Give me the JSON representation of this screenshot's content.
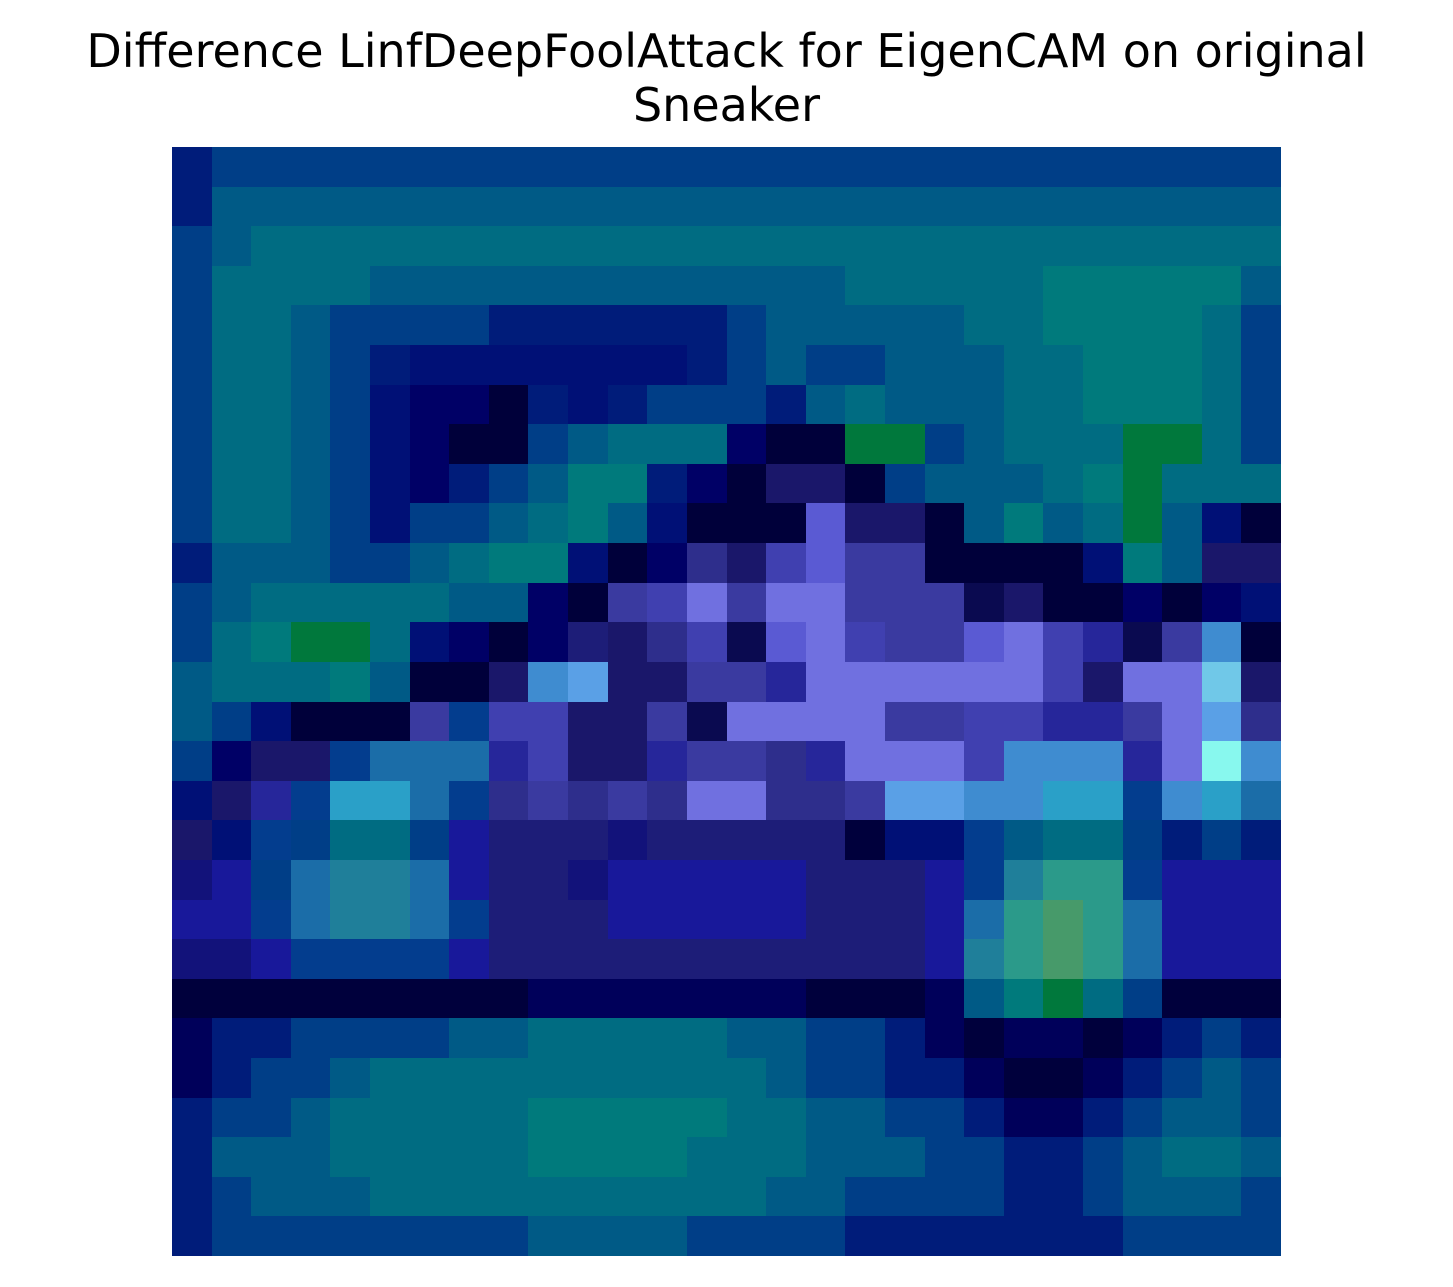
{
  "figure": {
    "title_line1": "Difference LinfDeepFoolAttack for EigenCAM on original",
    "title_line2": "Sneaker"
  },
  "chart_data": {
    "type": "heatmap",
    "title": "Difference LinfDeepFoolAttack for EigenCAM on original Sneaker",
    "xlabel": "",
    "ylabel": "",
    "axes_visible": false,
    "grid": false,
    "legend": "none",
    "rows": 28,
    "cols": 28,
    "colors": {
      "0": "#001c7a",
      "1": "#003e87",
      "2": "#005a86",
      "3": "#006c82",
      "4": "#007a7c",
      "5": "#033d8e",
      "6": "#001076",
      "7": "#000066",
      "8": "#00003a",
      "9": "#1a176a",
      "10": "#5a5ad3",
      "11": "#4040b0",
      "12": "#7070e0",
      "13": "#3a3aa0",
      "14": "#2e2e8c",
      "15": "#1d1d78",
      "16": "#26269a",
      "17": "#3f8cd0",
      "18": "#5aa0e6",
      "19": "#2aa0c8",
      "20": "#70c8e8",
      "21": "#88f8ee",
      "22": "#1b6da8",
      "23": "#18189a",
      "24": "#12127a",
      "25": "#1f7f9a",
      "26": "#2b9a8a",
      "27": "#479a6a",
      "28": "#00003c",
      "29": "#00005a",
      "30": "#00783c",
      "31": "#0a0a50"
    },
    "values": [
      [
        0,
        1,
        1,
        1,
        1,
        1,
        1,
        1,
        1,
        1,
        1,
        1,
        1,
        1,
        1,
        1,
        1,
        1,
        1,
        1,
        1,
        1,
        1,
        1,
        1,
        1,
        1,
        1
      ],
      [
        0,
        2,
        2,
        2,
        2,
        2,
        2,
        2,
        2,
        2,
        2,
        2,
        2,
        2,
        2,
        2,
        2,
        2,
        2,
        2,
        2,
        2,
        2,
        2,
        2,
        2,
        2,
        2
      ],
      [
        1,
        2,
        3,
        3,
        3,
        3,
        3,
        3,
        3,
        3,
        3,
        3,
        3,
        3,
        3,
        3,
        3,
        3,
        3,
        3,
        3,
        3,
        3,
        3,
        3,
        3,
        3,
        3
      ],
      [
        1,
        3,
        3,
        3,
        3,
        2,
        2,
        2,
        2,
        2,
        2,
        2,
        2,
        2,
        2,
        2,
        2,
        3,
        3,
        3,
        3,
        3,
        4,
        4,
        4,
        4,
        4,
        2
      ],
      [
        1,
        3,
        3,
        2,
        1,
        1,
        1,
        1,
        0,
        0,
        0,
        0,
        0,
        0,
        1,
        2,
        2,
        2,
        2,
        2,
        3,
        3,
        4,
        4,
        4,
        4,
        3,
        1
      ],
      [
        1,
        3,
        3,
        2,
        1,
        0,
        6,
        6,
        6,
        6,
        6,
        6,
        6,
        0,
        1,
        2,
        1,
        1,
        2,
        2,
        2,
        3,
        3,
        4,
        4,
        4,
        3,
        1
      ],
      [
        1,
        3,
        3,
        2,
        1,
        6,
        7,
        7,
        8,
        0,
        6,
        0,
        1,
        1,
        1,
        0,
        2,
        3,
        2,
        2,
        2,
        3,
        3,
        4,
        4,
        4,
        3,
        1
      ],
      [
        1,
        3,
        3,
        2,
        1,
        6,
        7,
        8,
        8,
        1,
        2,
        3,
        3,
        3,
        7,
        8,
        8,
        30,
        30,
        1,
        2,
        3,
        3,
        3,
        30,
        30,
        3,
        1
      ],
      [
        1,
        3,
        3,
        2,
        1,
        6,
        7,
        0,
        1,
        2,
        4,
        4,
        0,
        7,
        8,
        9,
        9,
        8,
        1,
        2,
        2,
        2,
        3,
        4,
        30,
        3,
        3,
        3
      ],
      [
        1,
        3,
        3,
        2,
        1,
        6,
        1,
        1,
        2,
        3,
        4,
        2,
        6,
        8,
        8,
        8,
        10,
        9,
        9,
        8,
        2,
        4,
        2,
        3,
        30,
        2,
        6,
        8
      ],
      [
        0,
        2,
        2,
        2,
        1,
        1,
        2,
        3,
        4,
        4,
        6,
        8,
        7,
        14,
        9,
        11,
        10,
        13,
        13,
        8,
        8,
        8,
        8,
        6,
        4,
        2,
        9,
        9
      ],
      [
        1,
        2,
        3,
        3,
        3,
        3,
        3,
        2,
        2,
        7,
        8,
        13,
        11,
        12,
        13,
        12,
        12,
        13,
        13,
        13,
        31,
        9,
        8,
        8,
        7,
        8,
        7,
        6
      ],
      [
        1,
        3,
        4,
        30,
        30,
        3,
        6,
        7,
        8,
        7,
        15,
        9,
        14,
        11,
        31,
        10,
        12,
        11,
        13,
        13,
        10,
        12,
        11,
        16,
        31,
        13,
        17,
        8
      ],
      [
        2,
        3,
        3,
        3,
        4,
        2,
        8,
        8,
        9,
        17,
        18,
        9,
        9,
        13,
        13,
        16,
        12,
        12,
        12,
        12,
        12,
        12,
        11,
        9,
        12,
        12,
        20,
        9
      ],
      [
        2,
        1,
        6,
        8,
        8,
        8,
        13,
        5,
        11,
        11,
        9,
        9,
        13,
        31,
        12,
        12,
        12,
        12,
        13,
        13,
        11,
        11,
        16,
        16,
        13,
        12,
        18,
        14
      ],
      [
        1,
        7,
        9,
        9,
        5,
        22,
        22,
        22,
        16,
        11,
        9,
        9,
        16,
        13,
        13,
        14,
        16,
        12,
        12,
        12,
        11,
        17,
        17,
        17,
        16,
        12,
        21,
        17
      ],
      [
        6,
        9,
        16,
        5,
        19,
        19,
        22,
        5,
        14,
        13,
        14,
        13,
        14,
        12,
        12,
        14,
        14,
        13,
        18,
        18,
        17,
        17,
        19,
        19,
        5,
        17,
        19,
        22
      ],
      [
        9,
        6,
        5,
        1,
        3,
        3,
        1,
        23,
        15,
        15,
        15,
        24,
        15,
        15,
        15,
        15,
        15,
        28,
        6,
        6,
        5,
        2,
        3,
        3,
        1,
        0,
        1,
        0
      ],
      [
        24,
        23,
        1,
        22,
        25,
        25,
        22,
        23,
        15,
        15,
        24,
        23,
        23,
        23,
        23,
        23,
        15,
        15,
        15,
        23,
        5,
        25,
        26,
        26,
        5,
        23,
        23,
        23
      ],
      [
        23,
        23,
        5,
        22,
        25,
        25,
        22,
        5,
        15,
        15,
        15,
        23,
        23,
        23,
        23,
        23,
        15,
        15,
        15,
        23,
        22,
        26,
        27,
        26,
        22,
        23,
        23,
        23
      ],
      [
        24,
        24,
        23,
        5,
        5,
        5,
        5,
        23,
        15,
        15,
        15,
        15,
        15,
        15,
        15,
        15,
        15,
        15,
        15,
        23,
        25,
        26,
        27,
        26,
        22,
        23,
        23,
        23
      ],
      [
        28,
        28,
        28,
        28,
        28,
        28,
        28,
        28,
        28,
        29,
        29,
        29,
        29,
        29,
        29,
        29,
        28,
        28,
        28,
        29,
        2,
        4,
        30,
        3,
        1,
        28,
        28,
        28
      ],
      [
        29,
        0,
        0,
        1,
        1,
        1,
        1,
        2,
        2,
        3,
        3,
        3,
        3,
        3,
        2,
        2,
        1,
        1,
        0,
        29,
        28,
        29,
        29,
        28,
        29,
        0,
        1,
        0
      ],
      [
        29,
        0,
        1,
        1,
        2,
        3,
        3,
        3,
        3,
        3,
        3,
        3,
        3,
        3,
        3,
        2,
        1,
        1,
        0,
        0,
        29,
        28,
        28,
        29,
        0,
        1,
        2,
        1
      ],
      [
        0,
        1,
        1,
        2,
        3,
        3,
        3,
        3,
        3,
        4,
        4,
        4,
        4,
        4,
        3,
        3,
        2,
        2,
        1,
        1,
        0,
        29,
        29,
        0,
        1,
        2,
        2,
        1
      ],
      [
        0,
        2,
        2,
        2,
        3,
        3,
        3,
        3,
        3,
        4,
        4,
        4,
        4,
        3,
        3,
        3,
        2,
        2,
        2,
        1,
        1,
        0,
        0,
        1,
        2,
        3,
        3,
        2
      ],
      [
        0,
        1,
        2,
        2,
        2,
        3,
        3,
        3,
        3,
        3,
        3,
        3,
        3,
        3,
        3,
        2,
        2,
        1,
        1,
        1,
        1,
        0,
        0,
        1,
        2,
        2,
        2,
        1
      ],
      [
        0,
        1,
        1,
        1,
        1,
        1,
        1,
        1,
        1,
        2,
        2,
        2,
        2,
        1,
        1,
        1,
        1,
        0,
        0,
        0,
        0,
        0,
        0,
        0,
        1,
        1,
        1,
        1
      ]
    ]
  }
}
